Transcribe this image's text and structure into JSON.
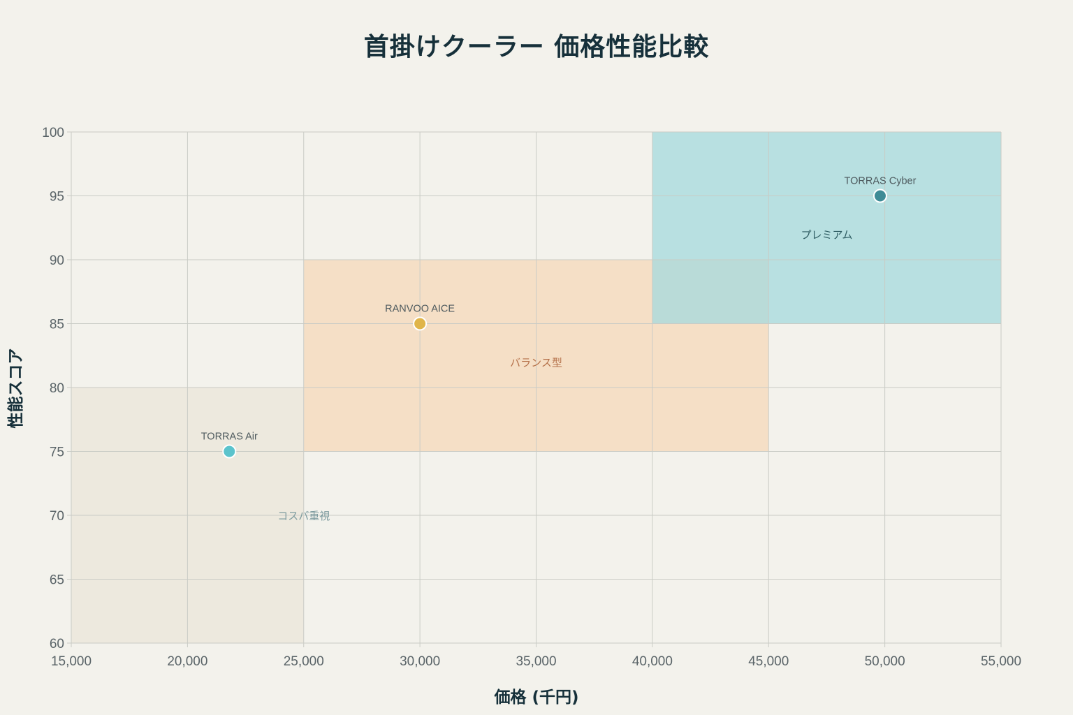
{
  "chart_data": {
    "type": "scatter",
    "title": "首掛けクーラー 価格性能比較",
    "xlabel": "価格 (千円)",
    "ylabel": "性能スコア",
    "xlim": [
      15000,
      55000
    ],
    "ylim": [
      60,
      100
    ],
    "x_ticks": [
      "15,000",
      "20,000",
      "25,000",
      "30,000",
      "35,000",
      "40,000",
      "45,000",
      "50,000",
      "55,000"
    ],
    "y_ticks": [
      "60",
      "65",
      "70",
      "75",
      "80",
      "85",
      "90",
      "95",
      "100"
    ],
    "grid": true,
    "regions": [
      {
        "label": "コスパ重視",
        "x": [
          15000,
          25000
        ],
        "y": [
          60,
          80
        ],
        "color": "#ebe6d9",
        "text_color": "#7c9a9e",
        "label_at": [
          25000,
          70
        ]
      },
      {
        "label": "バランス型",
        "x": [
          25000,
          45000
        ],
        "y": [
          75,
          90
        ],
        "color": "#f5d8ba",
        "text_color": "#b5714a",
        "label_at": [
          35000,
          82
        ]
      },
      {
        "label": "プレミアム",
        "x": [
          40000,
          55000
        ],
        "y": [
          85,
          100
        ],
        "color": "#a4dade",
        "text_color": "#2e5c62",
        "label_at": [
          47500,
          92
        ]
      }
    ],
    "points": [
      {
        "label": "TORRAS Air",
        "x": 21800,
        "y": 75,
        "color": "#5bc3cc"
      },
      {
        "label": "RANVOO AICE",
        "x": 30000,
        "y": 85,
        "color": "#e0b54a"
      },
      {
        "label": "TORRAS Cyber",
        "x": 49800,
        "y": 95,
        "color": "#3e8b96"
      }
    ]
  }
}
